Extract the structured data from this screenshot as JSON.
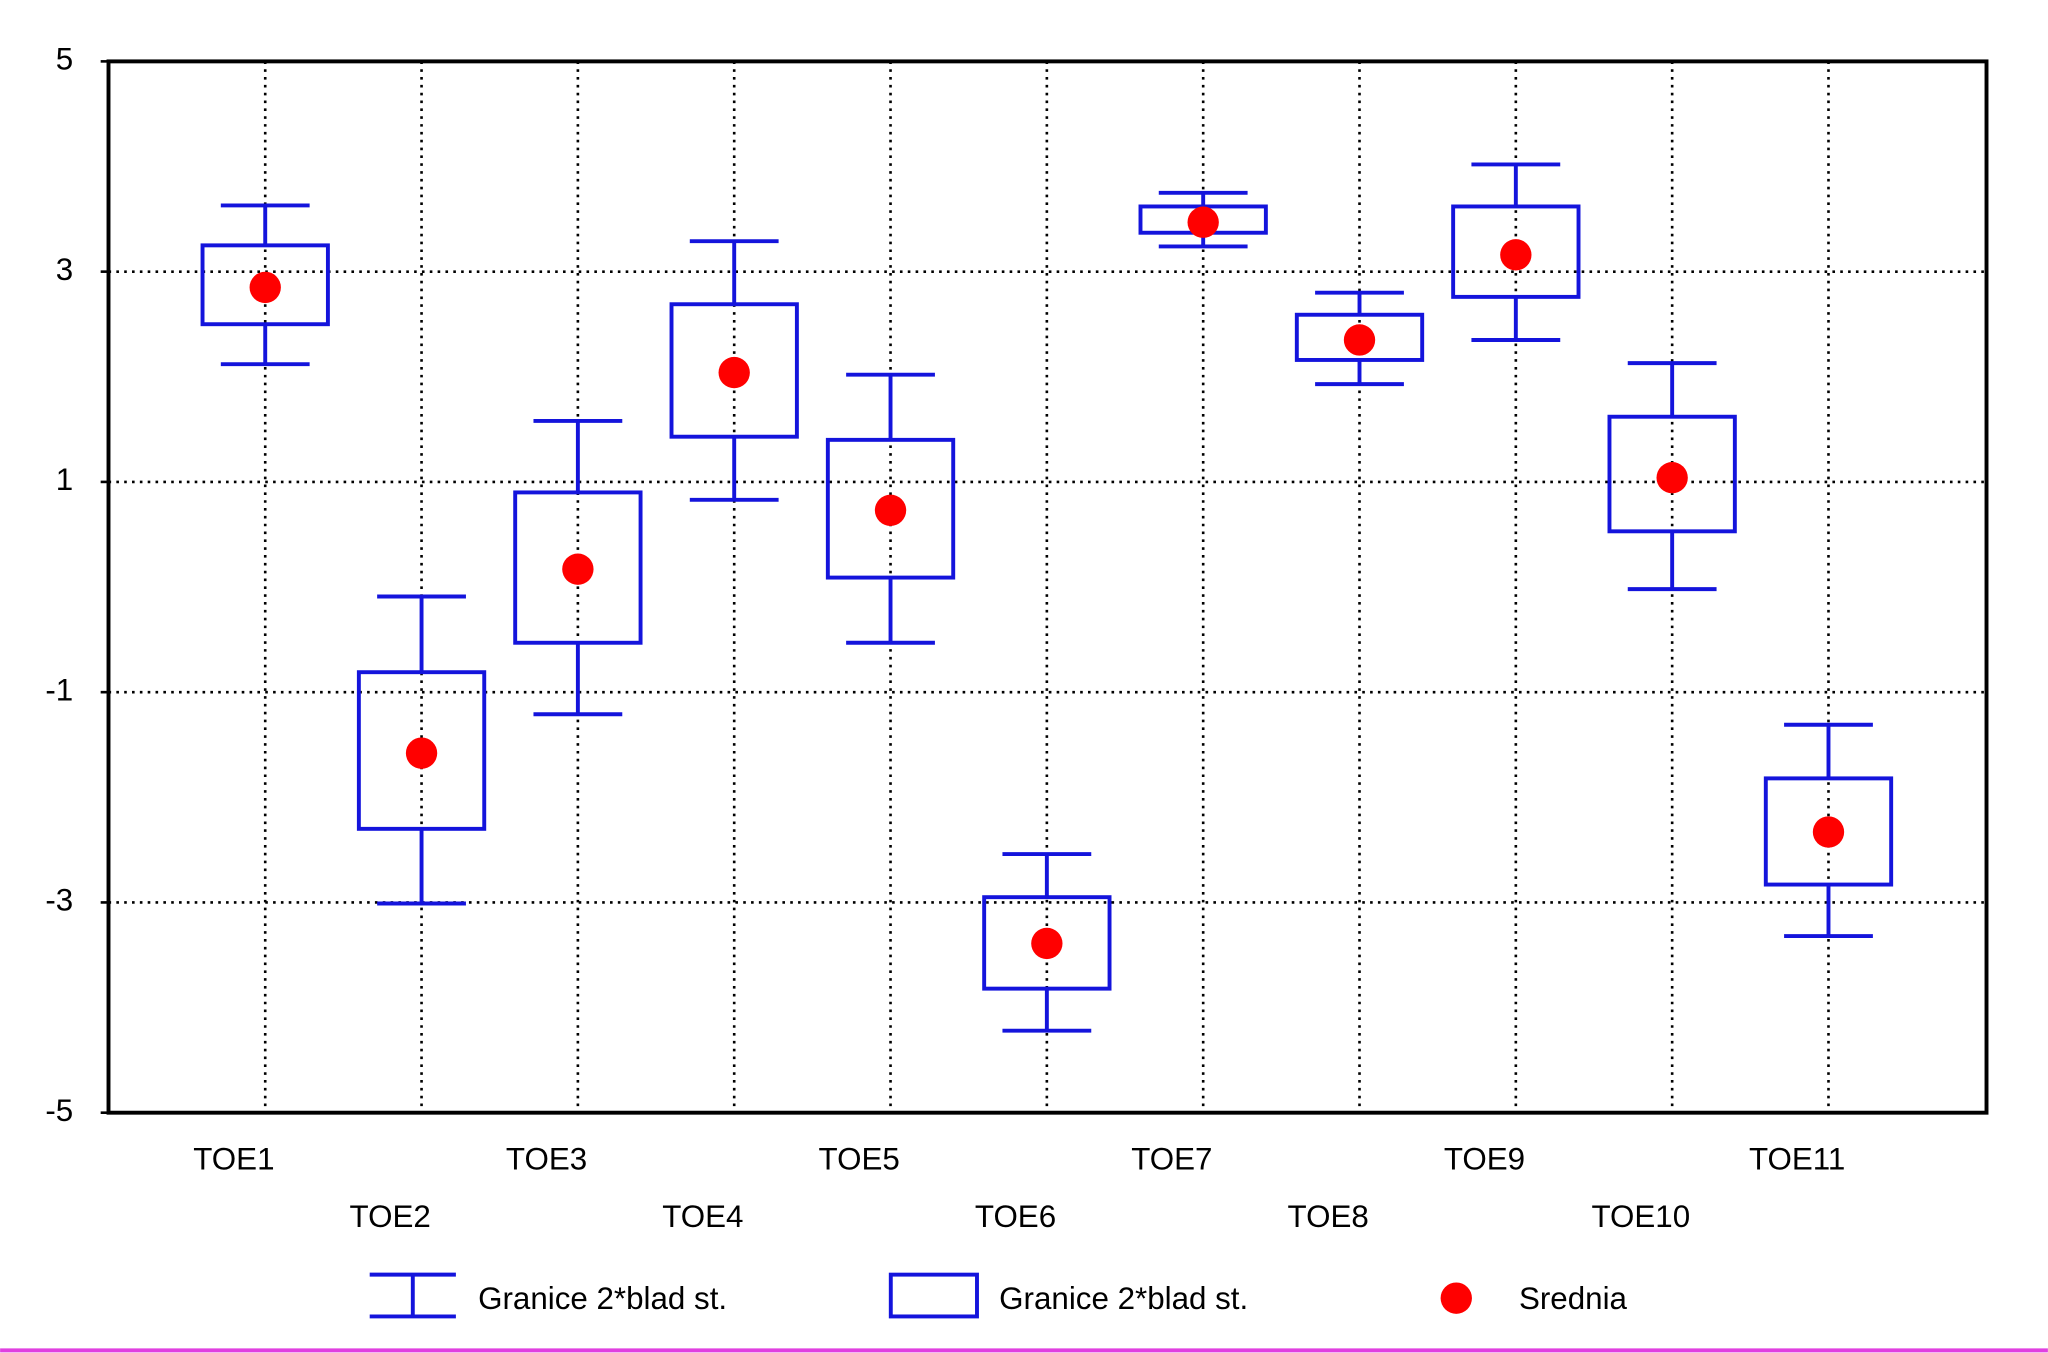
{
  "chart_data": {
    "type": "box",
    "categories": [
      "TOE1",
      "TOE2",
      "TOE3",
      "TOE4",
      "TOE5",
      "TOE6",
      "TOE7",
      "TOE8",
      "TOE9",
      "TOE10",
      "TOE11"
    ],
    "mean": [
      2.85,
      -1.58,
      0.17,
      2.04,
      0.73,
      -3.39,
      3.47,
      2.35,
      3.16,
      1.04,
      -2.33
    ],
    "box_high": [
      3.25,
      -0.81,
      0.9,
      2.69,
      1.4,
      -2.95,
      3.62,
      2.59,
      3.62,
      1.62,
      -1.82
    ],
    "box_low": [
      2.5,
      -2.3,
      -0.53,
      1.43,
      0.09,
      -3.82,
      3.37,
      2.16,
      2.76,
      0.53,
      -2.83
    ],
    "whisker_high": [
      3.63,
      -0.09,
      1.58,
      3.29,
      2.02,
      -2.54,
      3.75,
      2.8,
      4.02,
      2.13,
      -1.31
    ],
    "whisker_low": [
      2.12,
      -3.01,
      -1.21,
      0.83,
      -0.53,
      -4.22,
      3.24,
      1.93,
      2.35,
      -0.02,
      -3.32
    ],
    "ylim": [
      -5,
      5
    ],
    "yticks": [
      5,
      3,
      1,
      -1,
      -3,
      -5
    ],
    "grid": true,
    "box_color": "#1414dc",
    "mean_color": "#ff0000",
    "legend": [
      "Granice 2*blad st.",
      "Granice 2*blad st.",
      "Srednia"
    ]
  }
}
